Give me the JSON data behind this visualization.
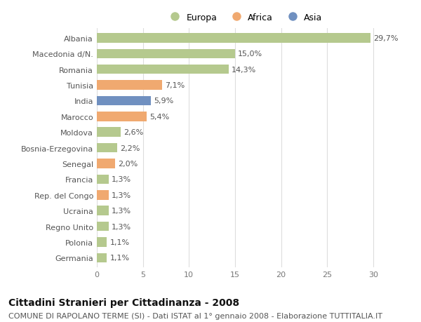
{
  "countries": [
    "Albania",
    "Macedonia d/N.",
    "Romania",
    "Tunisia",
    "India",
    "Marocco",
    "Moldova",
    "Bosnia-Erzegovina",
    "Senegal",
    "Francia",
    "Rep. del Congo",
    "Ucraina",
    "Regno Unito",
    "Polonia",
    "Germania"
  ],
  "values": [
    29.7,
    15.0,
    14.3,
    7.1,
    5.9,
    5.4,
    2.6,
    2.2,
    2.0,
    1.3,
    1.3,
    1.3,
    1.3,
    1.1,
    1.1
  ],
  "labels": [
    "29,7%",
    "15,0%",
    "14,3%",
    "7,1%",
    "5,9%",
    "5,4%",
    "2,6%",
    "2,2%",
    "2,0%",
    "1,3%",
    "1,3%",
    "1,3%",
    "1,3%",
    "1,1%",
    "1,1%"
  ],
  "continents": [
    "Europa",
    "Europa",
    "Europa",
    "Africa",
    "Asia",
    "Africa",
    "Europa",
    "Europa",
    "Africa",
    "Europa",
    "Africa",
    "Europa",
    "Europa",
    "Europa",
    "Europa"
  ],
  "colors": {
    "Europa": "#b5c98e",
    "Africa": "#f0a970",
    "Asia": "#7090c0"
  },
  "xlim": [
    0,
    32
  ],
  "xticks": [
    0,
    5,
    10,
    15,
    20,
    25,
    30
  ],
  "title": "Cittadini Stranieri per Cittadinanza - 2008",
  "subtitle": "COMUNE DI RAPOLANO TERME (SI) - Dati ISTAT al 1° gennaio 2008 - Elaborazione TUTTITALIA.IT",
  "background_color": "#ffffff",
  "plot_background": "#ffffff",
  "grid_color": "#dddddd",
  "title_fontsize": 10,
  "subtitle_fontsize": 8,
  "label_fontsize": 8,
  "tick_fontsize": 8,
  "bar_height": 0.6
}
